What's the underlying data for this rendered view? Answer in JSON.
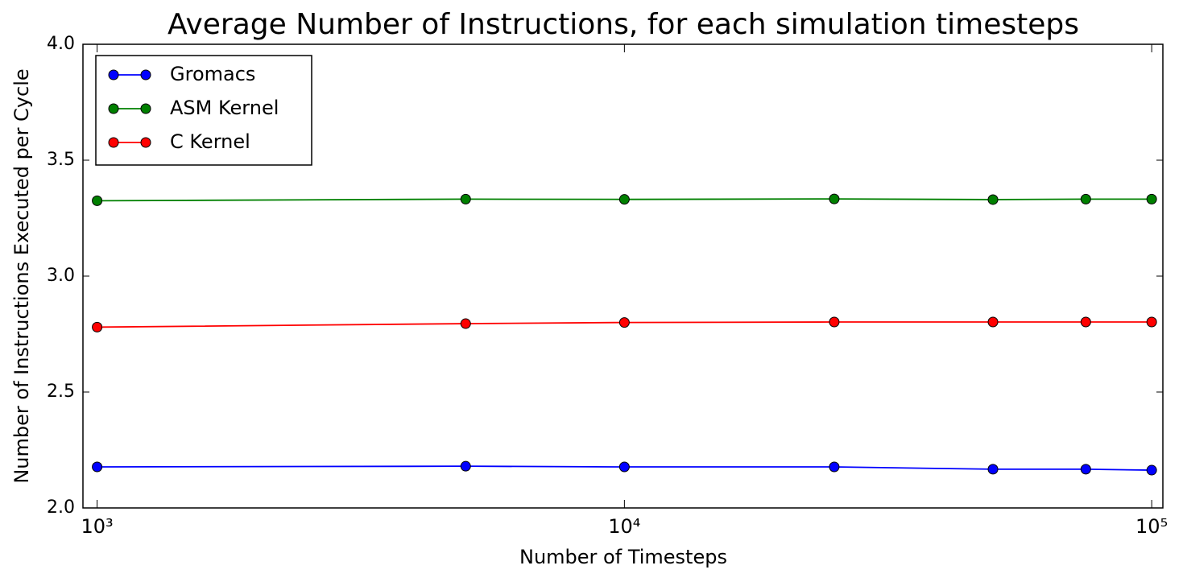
{
  "chart_data": {
    "type": "line",
    "title": "Average Number of Instructions, for each simulation timesteps",
    "x_label": "Number of Timesteps",
    "y_label": "Number of Instructions Executed per Cycle",
    "x": [
      1000,
      5000,
      10000,
      25000,
      50000,
      75000,
      100000
    ],
    "series": [
      {
        "name": "Gromacs",
        "color": "#0000ff",
        "values": [
          2.177,
          2.18,
          2.177,
          2.177,
          2.167,
          2.167,
          2.163
        ]
      },
      {
        "name": "ASM Kernel",
        "color": "#008000",
        "values": [
          3.325,
          3.332,
          3.331,
          3.333,
          3.33,
          3.332,
          3.332
        ]
      },
      {
        "name": "C Kernel",
        "color": "#ff0000",
        "values": [
          2.78,
          2.795,
          2.8,
          2.802,
          2.802,
          2.802,
          2.802
        ]
      }
    ],
    "x_log": true,
    "xlim": [
      940,
      105000
    ],
    "xticks": [
      {
        "value": 1000,
        "label": "10³"
      },
      {
        "value": 10000,
        "label": "10⁴"
      },
      {
        "value": 100000,
        "label": "10⁵"
      }
    ],
    "ylim": [
      2,
      4
    ],
    "yticks": [
      {
        "value": 2,
        "label": "2.0"
      },
      2.5,
      {
        "value": 3,
        "label": "3.0"
      },
      3.5,
      {
        "value": 4,
        "label": "4.0"
      }
    ],
    "grid": false,
    "legend": "upper-left"
  }
}
